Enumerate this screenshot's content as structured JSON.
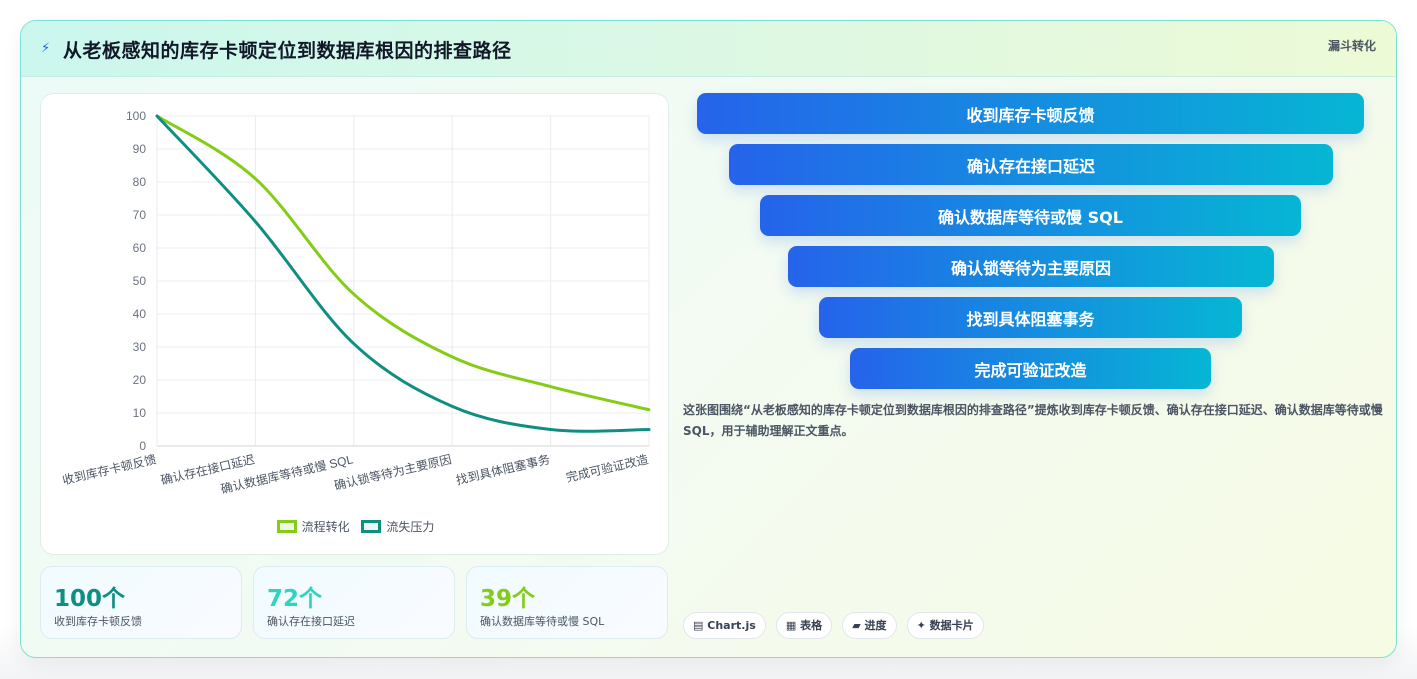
{
  "header": {
    "title_icon": "lightning-icon",
    "title": "从老板感知的库存卡顿定位到数据库根因的排查路径",
    "tag": "漏斗转化"
  },
  "chart_data": {
    "type": "line",
    "categories": [
      "收到库存卡顿反馈",
      "确认存在接口延迟",
      "确认数据库等待或慢 SQL",
      "确认锁等待为主要原因",
      "找到具体阻塞事务",
      "完成可验证改造"
    ],
    "series": [
      {
        "name": "流程转化",
        "values": [
          100,
          81,
          46,
          27,
          18,
          11
        ],
        "color": "#84cc16"
      },
      {
        "name": "流失压力",
        "values": [
          100,
          68,
          31,
          12,
          5,
          5
        ],
        "color": "#0f8f82"
      }
    ],
    "ylim": [
      0,
      100
    ],
    "yticks": [
      0,
      10,
      20,
      30,
      40,
      50,
      60,
      70,
      80,
      90,
      100
    ],
    "grid": true,
    "legend_position": "bottom"
  },
  "stats": [
    {
      "value": "100个",
      "label": "收到库存卡顿反馈",
      "color": "#0f8f82"
    },
    {
      "value": "72个",
      "label": "确认存在接口延迟",
      "color": "#2dd4bf"
    },
    {
      "value": "39个",
      "label": "确认数据库等待或慢 SQL",
      "color": "#84cc16"
    }
  ],
  "funnel": [
    "收到库存卡顿反馈",
    "确认存在接口延迟",
    "确认数据库等待或慢 SQL",
    "确认锁等待为主要原因",
    "找到具体阻塞事务",
    "完成可验证改造"
  ],
  "description": "这张图围绕“从老板感知的库存卡顿定位到数据库根因的排查路径”提炼收到库存卡顿反馈、确认存在接口延迟、确认数据库等待或慢 SQL，用于辅助理解正文重点。",
  "pills": [
    {
      "icon": "chart-icon",
      "glyph": "▤",
      "label": "Chart.js"
    },
    {
      "icon": "table-icon",
      "glyph": "▦",
      "label": "表格"
    },
    {
      "icon": "progress-icon",
      "glyph": "▰",
      "label": "进度"
    },
    {
      "icon": "sparkle-icon",
      "glyph": "✦",
      "label": "数据卡片"
    }
  ]
}
